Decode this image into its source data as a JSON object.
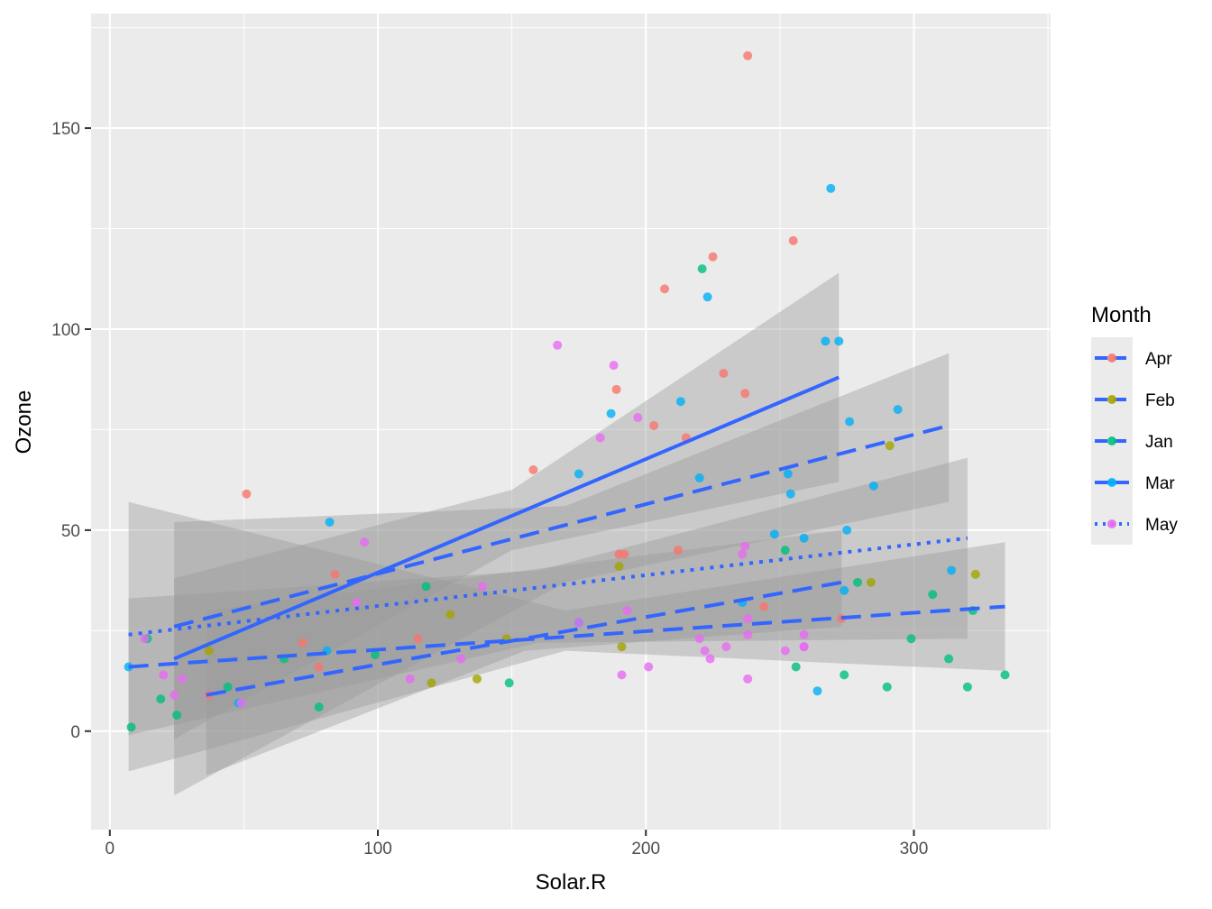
{
  "chart_data": {
    "type": "scatter",
    "title": "",
    "xlabel": "Solar.R",
    "ylabel": "Ozone",
    "xlim": [
      -7,
      351
    ],
    "ylim": [
      -24.5,
      178.5
    ],
    "x_ticks": [
      0,
      100,
      200,
      300
    ],
    "x_tick_labels": [
      "0",
      "100",
      "200",
      "300"
    ],
    "y_ticks": [
      0,
      50,
      100,
      150
    ],
    "y_tick_labels": [
      "0",
      "50",
      "100",
      "150"
    ],
    "grid": true,
    "legend_title": "Month",
    "legend_position": "right",
    "series": [
      {
        "name": "Apr",
        "color": "#F8766D",
        "linetype": "longdash",
        "points": [
          [
            51,
            59
          ],
          [
            84,
            39
          ],
          [
            72,
            22
          ],
          [
            78,
            16
          ],
          [
            37,
            9
          ],
          [
            115,
            23
          ],
          [
            158,
            65
          ],
          [
            189,
            85
          ],
          [
            190,
            44
          ],
          [
            192,
            44
          ],
          [
            203,
            76
          ],
          [
            207,
            110
          ],
          [
            212,
            45
          ],
          [
            215,
            73
          ],
          [
            225,
            118
          ],
          [
            229,
            89
          ],
          [
            237,
            84
          ],
          [
            238,
            168
          ],
          [
            244,
            31
          ],
          [
            255,
            122
          ],
          [
            273,
            28
          ]
        ],
        "fit": {
          "x0": 36,
          "y0": 9,
          "x1": 273,
          "y1": 37
        },
        "band": {
          "x": [
            36,
            155,
            273
          ],
          "lower": [
            -11,
            20,
            26
          ],
          "upper": [
            30,
            40,
            50
          ]
        }
      },
      {
        "name": "Feb",
        "color": "#A3A500",
        "linetype": "longdash",
        "points": [
          [
            37,
            20
          ],
          [
            120,
            12
          ],
          [
            127,
            29
          ],
          [
            137,
            13
          ],
          [
            148,
            23
          ],
          [
            190,
            41
          ],
          [
            191,
            21
          ],
          [
            284,
            37
          ],
          [
            291,
            71
          ],
          [
            323,
            39
          ]
        ],
        "fit": {
          "x0": 24,
          "y0": 26,
          "x1": 313,
          "y1": 76
        },
        "band": {
          "x": [
            24,
            170,
            313
          ],
          "lower": [
            -16,
            37,
            57
          ],
          "upper": [
            52,
            56,
            94
          ]
        }
      },
      {
        "name": "Jan",
        "color": "#00BF7D",
        "linetype": "longdash",
        "points": [
          [
            8,
            1
          ],
          [
            14,
            23
          ],
          [
            19,
            8
          ],
          [
            25,
            4
          ],
          [
            44,
            11
          ],
          [
            65,
            18
          ],
          [
            78,
            6
          ],
          [
            99,
            19
          ],
          [
            118,
            36
          ],
          [
            149,
            12
          ],
          [
            221,
            115
          ],
          [
            252,
            45
          ],
          [
            256,
            16
          ],
          [
            274,
            14
          ],
          [
            279,
            37
          ],
          [
            290,
            11
          ],
          [
            299,
            23
          ],
          [
            307,
            34
          ],
          [
            313,
            18
          ],
          [
            320,
            11
          ],
          [
            322,
            30
          ],
          [
            334,
            14
          ]
        ],
        "fit": {
          "x0": 7,
          "y0": 16,
          "x1": 334,
          "y1": 31
        },
        "band": {
          "x": [
            7,
            170,
            334
          ],
          "lower": [
            -10,
            20,
            15
          ],
          "upper": [
            57,
            30,
            47
          ]
        }
      },
      {
        "name": "Mar",
        "color": "#00B0F6",
        "linetype": "solid",
        "points": [
          [
            7,
            16
          ],
          [
            48,
            7
          ],
          [
            81,
            20
          ],
          [
            82,
            52
          ],
          [
            175,
            64
          ],
          [
            175,
            27
          ],
          [
            187,
            79
          ],
          [
            213,
            82
          ],
          [
            220,
            63
          ],
          [
            223,
            108
          ],
          [
            236,
            32
          ],
          [
            248,
            49
          ],
          [
            253,
            64
          ],
          [
            254,
            59
          ],
          [
            259,
            48
          ],
          [
            264,
            10
          ],
          [
            267,
            97
          ],
          [
            269,
            135
          ],
          [
            272,
            97
          ],
          [
            274,
            35
          ],
          [
            275,
            50
          ],
          [
            276,
            77
          ],
          [
            285,
            61
          ],
          [
            294,
            80
          ],
          [
            314,
            40
          ]
        ],
        "fit": {
          "x0": 24,
          "y0": 18,
          "x1": 272,
          "y1": 88
        },
        "band": {
          "x": [
            24,
            150,
            272
          ],
          "lower": [
            -2,
            45,
            62
          ],
          "upper": [
            38,
            60,
            114
          ]
        }
      },
      {
        "name": "May",
        "color": "#E76BF3",
        "linetype": "dotted",
        "points": [
          [
            13,
            23
          ],
          [
            20,
            14
          ],
          [
            24,
            9
          ],
          [
            27,
            13
          ],
          [
            49,
            7
          ],
          [
            92,
            32
          ],
          [
            95,
            47
          ],
          [
            112,
            13
          ],
          [
            131,
            18
          ],
          [
            139,
            36
          ],
          [
            167,
            96
          ],
          [
            175,
            27
          ],
          [
            183,
            73
          ],
          [
            188,
            91
          ],
          [
            191,
            14
          ],
          [
            193,
            30
          ],
          [
            197,
            78
          ],
          [
            201,
            16
          ],
          [
            220,
            23
          ],
          [
            222,
            20
          ],
          [
            224,
            18
          ],
          [
            230,
            21
          ],
          [
            236,
            44
          ],
          [
            237,
            46
          ],
          [
            238,
            28
          ],
          [
            238,
            24
          ],
          [
            238,
            13
          ],
          [
            252,
            20
          ],
          [
            259,
            21
          ],
          [
            259,
            21
          ],
          [
            259,
            24
          ]
        ],
        "fit": {
          "x0": 7,
          "y0": 24,
          "x1": 320,
          "y1": 48
        },
        "band": {
          "x": [
            7,
            160,
            320
          ],
          "lower": [
            -1,
            22,
            23
          ],
          "upper": [
            33,
            40,
            68
          ]
        }
      }
    ]
  }
}
